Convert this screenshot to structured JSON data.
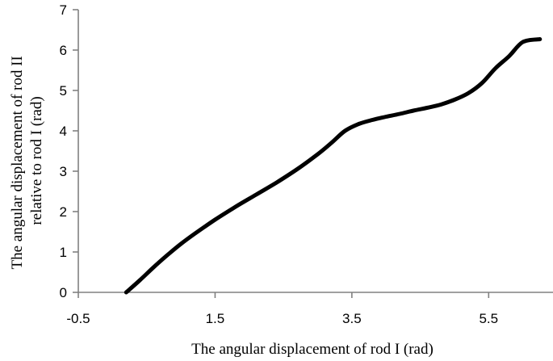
{
  "chart_data": {
    "type": "line",
    "title": "",
    "xlabel": "The angular displacement of rod I (rad)",
    "ylabel_lines": [
      "The angular displacement of rod II",
      "relative to rod I (rad)"
    ],
    "xlim": [
      -0.5,
      6.5
    ],
    "ylim": [
      0,
      7
    ],
    "x_ticks": [
      -0.5,
      1.5,
      3.5,
      5.5
    ],
    "x_tick_labels": [
      "-0.5",
      "1.5",
      "3.5",
      "5.5"
    ],
    "y_ticks": [
      0,
      1,
      2,
      3,
      4,
      5,
      6,
      7
    ],
    "y_tick_labels": [
      "0",
      "1",
      "2",
      "3",
      "4",
      "5",
      "6",
      "7"
    ],
    "grid": false,
    "legend": "none",
    "series": [
      {
        "color": "#000000",
        "x": [
          0.2,
          0.4,
          0.6,
          0.8,
          1.0,
          1.2,
          1.5,
          1.8,
          2.1,
          2.4,
          2.7,
          3.0,
          3.2,
          3.4,
          3.6,
          3.8,
          4.0,
          4.2,
          4.4,
          4.6,
          4.8,
          5.0,
          5.2,
          5.4,
          5.6,
          5.8,
          6.0,
          6.25
        ],
        "y": [
          0.0,
          0.3,
          0.62,
          0.92,
          1.2,
          1.45,
          1.8,
          2.12,
          2.42,
          2.72,
          3.05,
          3.42,
          3.7,
          4.0,
          4.17,
          4.27,
          4.35,
          4.42,
          4.5,
          4.57,
          4.65,
          4.77,
          4.93,
          5.18,
          5.55,
          5.85,
          6.2,
          6.27
        ]
      }
    ]
  }
}
